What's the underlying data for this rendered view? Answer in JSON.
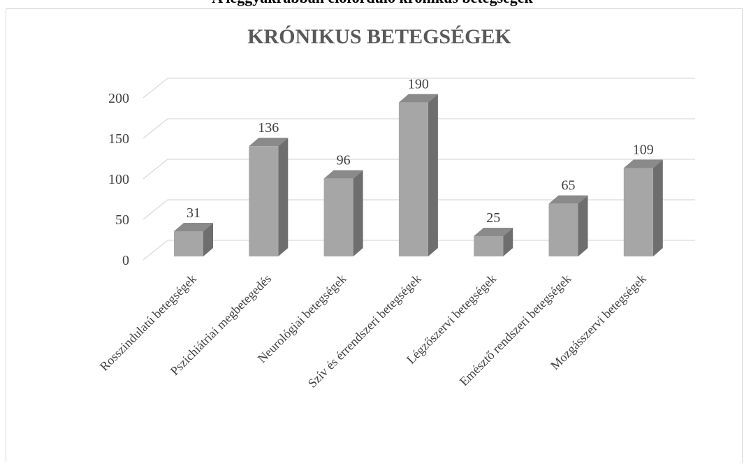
{
  "caption": "A leggyakrabban előforduló krónikus betegségek",
  "chart_data": {
    "type": "bar3d",
    "title": "KRÓNIKUS BETEGSÉGEK",
    "categories": [
      "Rosszindulatú betegségek",
      "Pszichiátriai megbetegedés",
      "Neurológiai betegségek",
      "Szív és érrendszeri betegségek",
      "Légzőszervi betegségek",
      "Emésztő rendszeri betegségek",
      "Mozgásszervi betegségek"
    ],
    "values": [
      31,
      136,
      96,
      190,
      25,
      65,
      109
    ],
    "color": "#a6a6a6",
    "ylim": [
      0,
      200
    ],
    "yticks": [
      0,
      50,
      100,
      150,
      200
    ],
    "grid": true
  }
}
